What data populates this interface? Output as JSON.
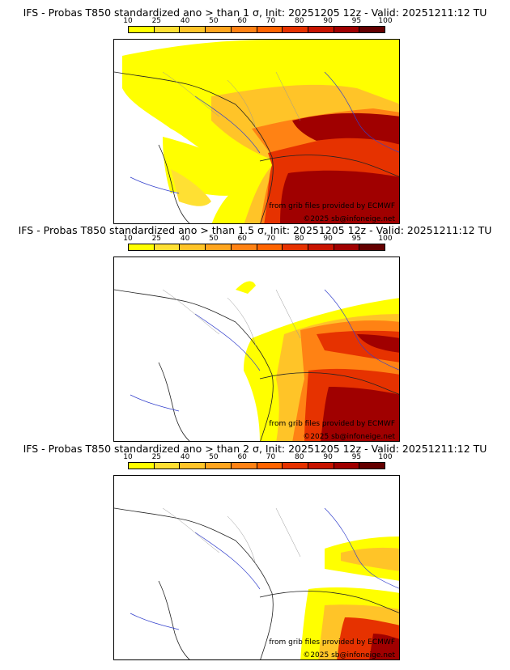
{
  "legend": {
    "ticks": [
      "10",
      "25",
      "40",
      "50",
      "60",
      "70",
      "80",
      "90",
      "95",
      "100"
    ],
    "colors": [
      "#ffff00",
      "#ffe033",
      "#ffc428",
      "#ffa51e",
      "#ff8214",
      "#ff6400",
      "#e63200",
      "#c81400",
      "#a00000",
      "#640000"
    ]
  },
  "panels": [
    {
      "title": "IFS - Probas T850  standardized ano > than 1 σ, Init: 20251205 12z - Valid: 20251211:12 TU"
    },
    {
      "title": "IFS - Probas T850  standardized ano > than 1.5 σ, Init: 20251205 12z - Valid: 20251211:12 TU"
    },
    {
      "title": "IFS - Probas T850  standardized ano > than 2 σ, Init: 20251205 12z - Valid: 20251211:12 TU"
    }
  ],
  "credits": {
    "source": "from grib files provided by ECMWF",
    "copyright": "©2025 sb@infoneige.net"
  }
}
